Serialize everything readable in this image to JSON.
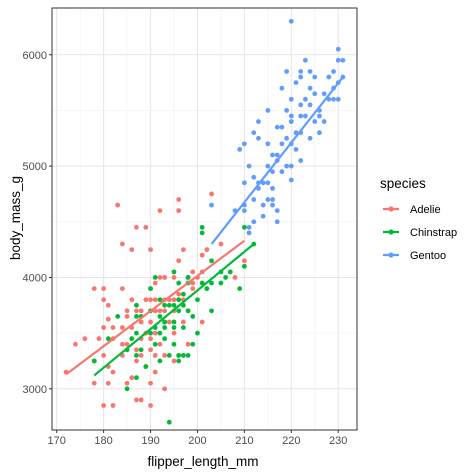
{
  "chart_data": {
    "type": "scatter",
    "xlabel": "flipper_length_mm",
    "ylabel": "body_mass_g",
    "xlim": [
      169,
      234
    ],
    "ylim": [
      2630,
      6420
    ],
    "xticks": [
      170,
      180,
      190,
      200,
      210,
      220,
      230
    ],
    "yticks": [
      3000,
      4000,
      5000,
      6000
    ],
    "xtick_labels": [
      "170",
      "180",
      "190",
      "200",
      "210",
      "220",
      "230"
    ],
    "ytick_labels": [
      "3000",
      "4000",
      "5000",
      "6000"
    ],
    "grid": true,
    "legend": {
      "title": "species",
      "position": "right"
    },
    "series": [
      {
        "name": "Adelie",
        "color": "#F8766D",
        "trend": {
          "x": [
            172,
            210
          ],
          "y": [
            3130,
            4330
          ]
        },
        "points": [
          [
            172,
            3150
          ],
          [
            174,
            3400
          ],
          [
            176,
            3450
          ],
          [
            178,
            3250
          ],
          [
            178,
            3900
          ],
          [
            178,
            3050
          ],
          [
            179,
            3450
          ],
          [
            180,
            3550
          ],
          [
            180,
            3900
          ],
          [
            180,
            3300
          ],
          [
            180,
            2850
          ],
          [
            181,
            3750
          ],
          [
            181,
            3625
          ],
          [
            181,
            3200
          ],
          [
            181,
            3050
          ],
          [
            182,
            3450
          ],
          [
            182,
            3150
          ],
          [
            182,
            2850
          ],
          [
            183,
            4650
          ],
          [
            184,
            3900
          ],
          [
            184,
            3400
          ],
          [
            184,
            3300
          ],
          [
            184,
            3550
          ],
          [
            185,
            3650
          ],
          [
            185,
            3700
          ],
          [
            185,
            3400
          ],
          [
            185,
            3050
          ],
          [
            186,
            3800
          ],
          [
            186,
            3550
          ],
          [
            186,
            3100
          ],
          [
            186,
            3450
          ],
          [
            187,
            3700
          ],
          [
            187,
            4450
          ],
          [
            187,
            3250
          ],
          [
            187,
            2900
          ],
          [
            187,
            3350
          ],
          [
            188,
            3300
          ],
          [
            188,
            2900
          ],
          [
            188,
            3600
          ],
          [
            188,
            3450
          ],
          [
            189,
            3500
          ],
          [
            189,
            3200
          ],
          [
            189,
            4450
          ],
          [
            189,
            3800
          ],
          [
            190,
            3800
          ],
          [
            190,
            3600
          ],
          [
            190,
            3450
          ],
          [
            190,
            3900
          ],
          [
            190,
            4250
          ],
          [
            190,
            3350
          ],
          [
            190,
            3050
          ],
          [
            190,
            2850
          ],
          [
            191,
            3700
          ],
          [
            191,
            3300
          ],
          [
            191,
            3950
          ],
          [
            191,
            3800
          ],
          [
            191,
            3150
          ],
          [
            191,
            3500
          ],
          [
            192,
            4000
          ],
          [
            192,
            4600
          ],
          [
            192,
            3700
          ],
          [
            192,
            3400
          ],
          [
            193,
            3700
          ],
          [
            193,
            3800
          ],
          [
            193,
            4000
          ],
          [
            193,
            3600
          ],
          [
            193,
            3300
          ],
          [
            193,
            3000
          ],
          [
            194,
            3800
          ],
          [
            194,
            3600
          ],
          [
            195,
            4000
          ],
          [
            195,
            3700
          ],
          [
            195,
            3800
          ],
          [
            195,
            3500
          ],
          [
            195,
            3250
          ],
          [
            196,
            4150
          ],
          [
            196,
            4700
          ],
          [
            196,
            4600
          ],
          [
            196,
            3850
          ],
          [
            196,
            3300
          ],
          [
            197,
            4250
          ],
          [
            197,
            3800
          ],
          [
            197,
            3600
          ],
          [
            198,
            4000
          ],
          [
            198,
            3700
          ],
          [
            198,
            3400
          ],
          [
            199,
            4050
          ],
          [
            199,
            3950
          ],
          [
            199,
            3900
          ],
          [
            200,
            4000
          ],
          [
            201,
            4050
          ],
          [
            201,
            4200
          ],
          [
            201,
            3600
          ],
          [
            202,
            4250
          ],
          [
            202,
            3900
          ],
          [
            203,
            4750
          ],
          [
            205,
            4300
          ],
          [
            208,
            4000
          ],
          [
            210,
            4150
          ],
          [
            188,
            3700
          ],
          [
            186,
            4250
          ],
          [
            184,
            4300
          ],
          [
            196,
            3800
          ],
          [
            180,
            3800
          ],
          [
            182,
            3550
          ]
        ]
      },
      {
        "name": "Chinstrap",
        "color": "#00BA38",
        "trend": {
          "x": [
            178,
            212
          ],
          "y": [
            3120,
            4300
          ]
        },
        "points": [
          [
            178,
            3250
          ],
          [
            181,
            3450
          ],
          [
            183,
            3650
          ],
          [
            185,
            3000
          ],
          [
            185,
            3350
          ],
          [
            186,
            3450
          ],
          [
            187,
            3750
          ],
          [
            187,
            3300
          ],
          [
            187,
            3100
          ],
          [
            187,
            3500
          ],
          [
            188,
            3650
          ],
          [
            189,
            3200
          ],
          [
            190,
            3500
          ],
          [
            190,
            3700
          ],
          [
            190,
            3900
          ],
          [
            191,
            3400
          ],
          [
            191,
            3550
          ],
          [
            192,
            3650
          ],
          [
            192,
            3800
          ],
          [
            192,
            3250
          ],
          [
            193,
            3450
          ],
          [
            193,
            3600
          ],
          [
            193,
            3750
          ],
          [
            194,
            2700
          ],
          [
            194,
            3300
          ],
          [
            195,
            3400
          ],
          [
            195,
            3600
          ],
          [
            195,
            3750
          ],
          [
            195,
            4050
          ],
          [
            196,
            3700
          ],
          [
            196,
            3800
          ],
          [
            196,
            3250
          ],
          [
            197,
            3300
          ],
          [
            197,
            3550
          ],
          [
            197,
            3850
          ],
          [
            197,
            3750
          ],
          [
            198,
            3700
          ],
          [
            198,
            3950
          ],
          [
            198,
            4000
          ],
          [
            199,
            3650
          ],
          [
            200,
            3800
          ],
          [
            201,
            3950
          ],
          [
            201,
            4400
          ],
          [
            201,
            4450
          ],
          [
            202,
            3900
          ],
          [
            203,
            4150
          ],
          [
            203,
            3700
          ],
          [
            205,
            4050
          ],
          [
            205,
            3950
          ],
          [
            206,
            4000
          ],
          [
            207,
            4050
          ],
          [
            209,
            3900
          ],
          [
            210,
            4100
          ],
          [
            210,
            4450
          ],
          [
            212,
            4300
          ],
          [
            193,
            3550
          ],
          [
            196,
            3300
          ],
          [
            192,
            3500
          ],
          [
            194,
            3750
          ],
          [
            200,
            3500
          ],
          [
            203,
            3950
          ],
          [
            188,
            3350
          ],
          [
            196,
            3950
          ],
          [
            199,
            3400
          ],
          [
            195,
            3550
          ],
          [
            191,
            4000
          ],
          [
            187,
            3650
          ],
          [
            198,
            3300
          ]
        ]
      },
      {
        "name": "Gentoo",
        "color": "#619CFF",
        "trend": {
          "x": [
            203,
            231
          ],
          "y": [
            4300,
            5800
          ]
        },
        "points": [
          [
            203,
            4650
          ],
          [
            208,
            4600
          ],
          [
            209,
            5150
          ],
          [
            210,
            4650
          ],
          [
            210,
            4850
          ],
          [
            210,
            5200
          ],
          [
            210,
            4600
          ],
          [
            211,
            4400
          ],
          [
            211,
            4450
          ],
          [
            212,
            4700
          ],
          [
            212,
            4900
          ],
          [
            212,
            5300
          ],
          [
            212,
            4500
          ],
          [
            213,
            4800
          ],
          [
            213,
            5250
          ],
          [
            213,
            4850
          ],
          [
            214,
            4550
          ],
          [
            214,
            4650
          ],
          [
            214,
            4850
          ],
          [
            215,
            4700
          ],
          [
            215,
            5000
          ],
          [
            215,
            5200
          ],
          [
            215,
            5500
          ],
          [
            215,
            4850
          ],
          [
            216,
            4800
          ],
          [
            216,
            5100
          ],
          [
            216,
            4950
          ],
          [
            216,
            4700
          ],
          [
            217,
            5100
          ],
          [
            217,
            4500
          ],
          [
            217,
            4600
          ],
          [
            217,
            5050
          ],
          [
            218,
            4950
          ],
          [
            218,
            5350
          ],
          [
            218,
            5200
          ],
          [
            218,
            5700
          ],
          [
            219,
            5250
          ],
          [
            219,
            5000
          ],
          [
            219,
            5500
          ],
          [
            220,
            5000
          ],
          [
            220,
            5200
          ],
          [
            220,
            5400
          ],
          [
            220,
            5450
          ],
          [
            220,
            5600
          ],
          [
            221,
            5150
          ],
          [
            221,
            5300
          ],
          [
            221,
            5750
          ],
          [
            222,
            5050
          ],
          [
            222,
            5300
          ],
          [
            222,
            5450
          ],
          [
            222,
            5550
          ],
          [
            223,
            5450
          ],
          [
            223,
            5950
          ],
          [
            223,
            5600
          ],
          [
            224,
            5250
          ],
          [
            224,
            5700
          ],
          [
            224,
            5550
          ],
          [
            225,
            5650
          ],
          [
            225,
            5800
          ],
          [
            225,
            5400
          ],
          [
            226,
            5300
          ],
          [
            226,
            5450
          ],
          [
            227,
            5400
          ],
          [
            227,
            5650
          ],
          [
            228,
            5800
          ],
          [
            228,
            5600
          ],
          [
            229,
            5850
          ],
          [
            229,
            5700
          ],
          [
            229,
            5600
          ],
          [
            230,
            5750
          ],
          [
            230,
            6050
          ],
          [
            230,
            5600
          ],
          [
            230,
            5950
          ],
          [
            231,
            5800
          ],
          [
            231,
            5950
          ],
          [
            220,
            6300
          ],
          [
            222,
            5850
          ],
          [
            219,
            5850
          ],
          [
            224,
            5850
          ],
          [
            217,
            5350
          ],
          [
            216,
            4650
          ],
          [
            211,
            5000
          ],
          [
            213,
            5400
          ],
          [
            220,
            4875
          ],
          [
            222,
            5800
          ],
          [
            226,
            5500
          ]
        ]
      }
    ]
  }
}
